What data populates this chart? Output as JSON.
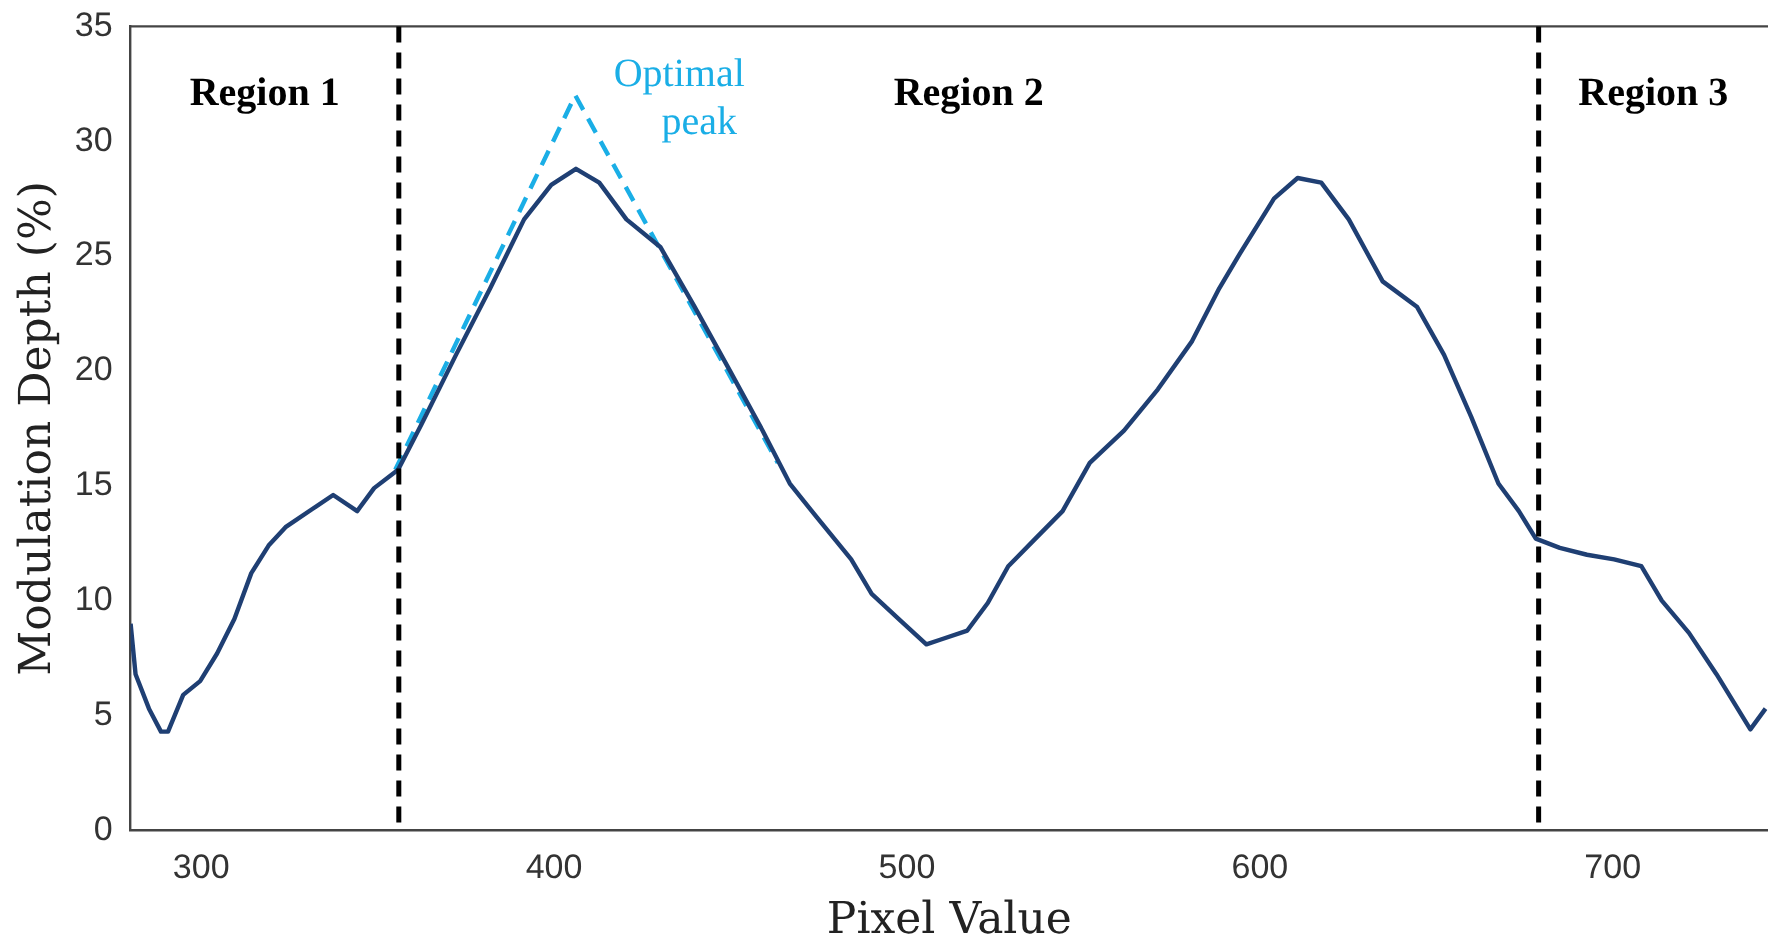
{
  "chart_data": {
    "type": "line",
    "xlabel": "Pixel Value",
    "ylabel": "Modulation Depth (%)",
    "xlim": [
      280,
      744
    ],
    "xticks": [
      300,
      400,
      500,
      600,
      700
    ],
    "ylim": [
      0,
      35
    ],
    "yticks": [
      0,
      5,
      10,
      15,
      20,
      25,
      30,
      35
    ],
    "grid": false,
    "legend": false,
    "marker": "none",
    "series": [
      {
        "color": "#1f3f73",
        "line_style": "solid",
        "x": [
          280,
          281.4,
          285.2,
          288.6,
          290.6,
          294.9,
          299.7,
          304.5,
          309.4,
          314.2,
          319.1,
          323.9,
          331.6,
          337.4,
          344.2,
          349,
          355.8,
          362.5,
          372.2,
          381.9,
          391.5,
          399.2,
          406.2,
          412.8,
          420.5,
          430.1,
          439.8,
          449.5,
          459.1,
          466.8,
          474.6,
          484.2,
          490,
          497.7,
          505.5,
          509.4,
          517.1,
          522.9,
          528.7,
          536.4,
          544.1,
          551.8,
          561.5,
          571.1,
          580.8,
          588.5,
          594.3,
          604,
          610.7,
          617.4,
          625.2,
          634.8,
          644.5,
          652.2,
          659.9,
          667.6,
          673.4,
          678.2,
          685,
          692.7,
          700.4,
          708.1,
          713.9,
          721.6,
          729.4,
          739,
          743.3
        ],
        "values": [
          9.0,
          6.8,
          5.3,
          4.3,
          4.3,
          5.9,
          6.5,
          7.7,
          9.2,
          11.2,
          12.4,
          13.2,
          14.0,
          14.6,
          13.9,
          14.9,
          15.7,
          17.7,
          20.7,
          23.6,
          26.6,
          28.1,
          28.8,
          28.2,
          26.6,
          25.4,
          22.8,
          20.1,
          17.4,
          15.1,
          13.6,
          11.8,
          10.3,
          9.2,
          8.1,
          8.3,
          8.7,
          9.9,
          11.5,
          12.7,
          13.9,
          16.0,
          17.4,
          19.2,
          21.3,
          23.6,
          25.1,
          27.5,
          28.4,
          28.2,
          26.6,
          23.9,
          22.8,
          20.7,
          18.0,
          15.1,
          13.9,
          12.7,
          12.3,
          12.0,
          11.8,
          11.5,
          10.0,
          8.6,
          6.8,
          4.4,
          5.3
        ]
      },
      {
        "name": "Optimal peak",
        "color": "#1aaee6",
        "line_style": "dashed",
        "x": [
          355,
          406,
          463.4
        ],
        "values": [
          15.7,
          32.0,
          16.0
        ]
      }
    ],
    "ref_lines": [
      {
        "axis": "x",
        "value": 356,
        "color": "#000000",
        "line_style": "dashed"
      },
      {
        "axis": "x",
        "value": 679,
        "color": "#000000",
        "line_style": "dashed"
      }
    ],
    "annotations": [
      "Region 1",
      "Region 2",
      "Region 3"
    ]
  }
}
